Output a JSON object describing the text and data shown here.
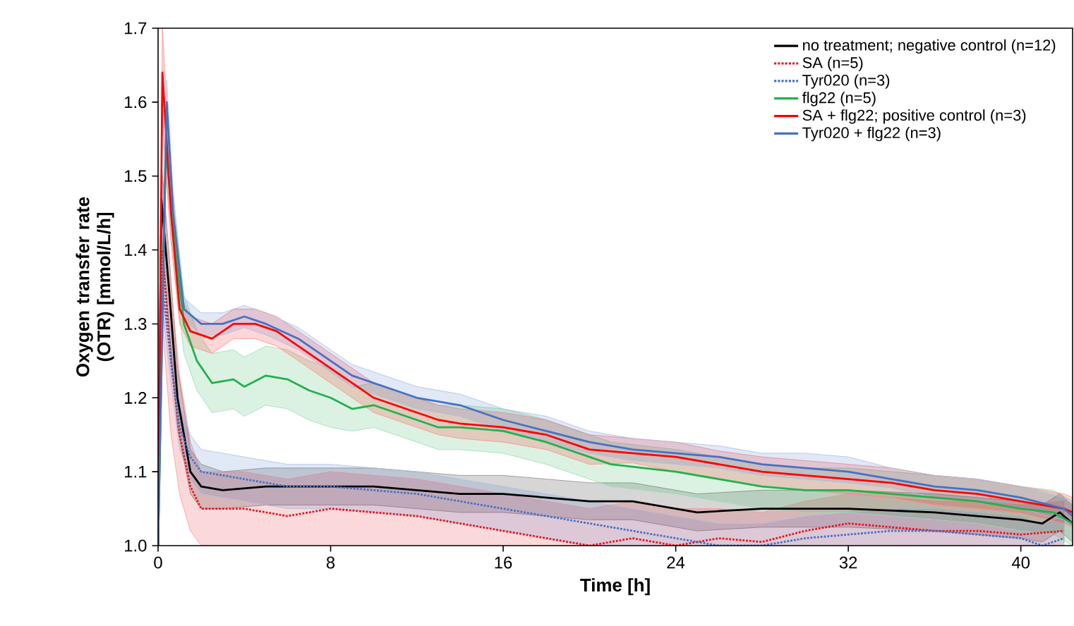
{
  "chart_data": {
    "type": "line",
    "xlabel": "Time [h]",
    "ylabel": "Oxygen transfer rate (OTR) [mmol/L/h]",
    "xlim": [
      0,
      42.4
    ],
    "ylim": [
      1.0,
      1.7
    ],
    "xticks": [
      0,
      8,
      16,
      24,
      32,
      40
    ],
    "yticks": [
      {
        "value": 1.0,
        "label": "1.0"
      },
      {
        "value": 1.1,
        "label": "1.1"
      },
      {
        "value": 1.2,
        "label": "1.2"
      },
      {
        "value": 1.3,
        "label": "1.3"
      },
      {
        "value": 1.4,
        "label": "1.4"
      },
      {
        "value": 1.5,
        "label": "1.5"
      },
      {
        "value": 1.6,
        "label": "1.6"
      },
      {
        "value": 1.7,
        "label": "1.7"
      }
    ],
    "legend": "top right",
    "grid": false,
    "series": [
      {
        "name": "no treatment; negative control (n=12)",
        "color": "#000000",
        "line_style": "solid",
        "x": [
          0,
          0.15,
          0.5,
          0.9,
          1.5,
          2,
          3,
          5,
          8,
          10,
          12,
          14,
          16,
          18,
          20,
          22,
          24,
          25,
          28,
          32,
          36,
          38,
          40,
          41,
          41.8,
          42.4
        ],
        "values": [
          1.0,
          1.47,
          1.35,
          1.2,
          1.1,
          1.08,
          1.075,
          1.08,
          1.08,
          1.08,
          1.075,
          1.07,
          1.07,
          1.065,
          1.06,
          1.06,
          1.05,
          1.045,
          1.05,
          1.05,
          1.045,
          1.04,
          1.035,
          1.03,
          1.045,
          1.03
        ],
        "lower": [
          1.0,
          1.42,
          1.3,
          1.16,
          1.07,
          1.05,
          1.05,
          1.055,
          1.055,
          1.055,
          1.05,
          1.045,
          1.045,
          1.04,
          1.035,
          1.035,
          1.025,
          1.02,
          1.025,
          1.025,
          1.02,
          1.015,
          1.01,
          1.005,
          1.02,
          1.005
        ],
        "upper": [
          1.0,
          1.52,
          1.4,
          1.24,
          1.13,
          1.11,
          1.1,
          1.105,
          1.105,
          1.105,
          1.1,
          1.095,
          1.095,
          1.09,
          1.085,
          1.085,
          1.075,
          1.07,
          1.075,
          1.075,
          1.07,
          1.065,
          1.06,
          1.055,
          1.07,
          1.055
        ]
      },
      {
        "name": "SA (n=5)",
        "color": "#e8141c",
        "line_style": "dotted",
        "x": [
          0,
          0.2,
          0.6,
          1,
          1.5,
          2,
          4,
          6,
          8,
          10,
          12,
          14,
          16,
          18,
          20,
          22,
          24,
          26,
          28,
          30,
          32,
          34,
          36,
          38,
          40,
          42
        ],
        "values": [
          1.0,
          1.4,
          1.25,
          1.15,
          1.08,
          1.05,
          1.05,
          1.04,
          1.05,
          1.045,
          1.04,
          1.03,
          1.02,
          1.01,
          1.0,
          1.01,
          1.0,
          1.01,
          1.005,
          1.02,
          1.03,
          1.025,
          1.02,
          1.02,
          1.015,
          1.02
        ],
        "lower": [
          1.0,
          1.3,
          1.15,
          1.07,
          1.02,
          1.0,
          1.0,
          1.0,
          1.0,
          1.0,
          1.0,
          1.0,
          1.0,
          1.0,
          1.0,
          1.0,
          1.0,
          1.0,
          1.0,
          1.0,
          1.0,
          1.0,
          1.0,
          1.0,
          1.0,
          1.0
        ],
        "upper": [
          1.0,
          1.5,
          1.35,
          1.23,
          1.14,
          1.1,
          1.1,
          1.09,
          1.1,
          1.095,
          1.09,
          1.08,
          1.07,
          1.06,
          1.05,
          1.06,
          1.05,
          1.05,
          1.045,
          1.06,
          1.07,
          1.065,
          1.06,
          1.06,
          1.055,
          1.06
        ]
      },
      {
        "name": "Tyr020 (n=3)",
        "color": "#4472c4",
        "line_style": "dotted",
        "x": [
          0,
          0.2,
          0.6,
          1,
          1.5,
          2,
          4,
          6,
          8,
          10,
          12,
          14,
          16,
          18,
          20,
          22,
          24,
          26,
          28,
          30,
          32,
          34,
          36,
          38,
          40,
          41,
          42
        ],
        "values": [
          1.0,
          1.35,
          1.25,
          1.16,
          1.12,
          1.1,
          1.09,
          1.08,
          1.08,
          1.075,
          1.07,
          1.06,
          1.05,
          1.04,
          1.03,
          1.02,
          1.01,
          1.0,
          1.0,
          1.01,
          1.015,
          1.02,
          1.02,
          1.015,
          1.01,
          1.0,
          1.01
        ],
        "lower": [
          1.0,
          1.32,
          1.22,
          1.13,
          1.09,
          1.07,
          1.06,
          1.05,
          1.05,
          1.045,
          1.04,
          1.03,
          1.02,
          1.01,
          1.0,
          1.0,
          1.0,
          1.0,
          1.0,
          1.0,
          1.0,
          1.0,
          1.0,
          1.0,
          1.0,
          1.0,
          1.0
        ],
        "upper": [
          1.0,
          1.38,
          1.28,
          1.19,
          1.15,
          1.13,
          1.12,
          1.11,
          1.11,
          1.105,
          1.1,
          1.09,
          1.08,
          1.07,
          1.06,
          1.05,
          1.04,
          1.03,
          1.03,
          1.04,
          1.045,
          1.05,
          1.05,
          1.045,
          1.04,
          1.03,
          1.04
        ]
      },
      {
        "name": "flg22 (n=5)",
        "color": "#22b14c",
        "line_style": "solid",
        "x": [
          0,
          0.35,
          0.8,
          1.2,
          1.8,
          2.5,
          3.5,
          4,
          5,
          6,
          7,
          8,
          9,
          10,
          11,
          12,
          13,
          14,
          16,
          18,
          20,
          21,
          24,
          26,
          28,
          30,
          32,
          34,
          36,
          38,
          40,
          41.5,
          42.4
        ],
        "values": [
          1.0,
          1.54,
          1.4,
          1.3,
          1.25,
          1.22,
          1.225,
          1.215,
          1.23,
          1.225,
          1.21,
          1.2,
          1.185,
          1.19,
          1.18,
          1.17,
          1.16,
          1.16,
          1.155,
          1.14,
          1.12,
          1.11,
          1.1,
          1.09,
          1.08,
          1.075,
          1.075,
          1.07,
          1.065,
          1.06,
          1.05,
          1.045,
          1.03
        ],
        "lower": [
          1.0,
          1.5,
          1.36,
          1.26,
          1.21,
          1.18,
          1.185,
          1.175,
          1.19,
          1.185,
          1.17,
          1.16,
          1.155,
          1.16,
          1.15,
          1.14,
          1.13,
          1.13,
          1.125,
          1.11,
          1.09,
          1.08,
          1.07,
          1.06,
          1.05,
          1.045,
          1.045,
          1.04,
          1.035,
          1.03,
          1.02,
          1.015,
          1.0
        ],
        "upper": [
          1.0,
          1.58,
          1.44,
          1.34,
          1.29,
          1.26,
          1.265,
          1.255,
          1.27,
          1.265,
          1.25,
          1.24,
          1.215,
          1.22,
          1.21,
          1.2,
          1.19,
          1.19,
          1.185,
          1.17,
          1.15,
          1.14,
          1.13,
          1.12,
          1.11,
          1.105,
          1.105,
          1.1,
          1.095,
          1.09,
          1.08,
          1.075,
          1.06
        ]
      },
      {
        "name": "SA + flg22; positive control (n=3)",
        "color": "#ff0000",
        "line_style": "solid",
        "x": [
          0,
          0.2,
          0.6,
          1,
          1.5,
          2.5,
          3.5,
          4.5,
          5.5,
          6.5,
          8,
          9,
          10,
          11,
          12,
          13,
          14,
          16,
          18,
          20,
          22,
          24,
          26,
          28,
          30,
          32,
          34,
          36,
          38,
          40,
          42,
          42.4
        ],
        "values": [
          1.0,
          1.64,
          1.45,
          1.32,
          1.29,
          1.28,
          1.3,
          1.3,
          1.29,
          1.27,
          1.24,
          1.22,
          1.2,
          1.19,
          1.18,
          1.17,
          1.165,
          1.16,
          1.15,
          1.13,
          1.125,
          1.12,
          1.11,
          1.1,
          1.095,
          1.09,
          1.085,
          1.075,
          1.07,
          1.06,
          1.05,
          1.045
        ],
        "lower": [
          1.0,
          1.58,
          1.41,
          1.3,
          1.27,
          1.26,
          1.28,
          1.28,
          1.27,
          1.25,
          1.22,
          1.2,
          1.18,
          1.17,
          1.16,
          1.15,
          1.145,
          1.14,
          1.13,
          1.11,
          1.112,
          1.1,
          1.09,
          1.08,
          1.075,
          1.07,
          1.065,
          1.055,
          1.05,
          1.044,
          1.03,
          1.025
        ],
        "upper": [
          1.0,
          1.7,
          1.49,
          1.34,
          1.31,
          1.3,
          1.32,
          1.32,
          1.31,
          1.29,
          1.26,
          1.24,
          1.22,
          1.21,
          1.2,
          1.19,
          1.185,
          1.18,
          1.17,
          1.15,
          1.145,
          1.14,
          1.128,
          1.12,
          1.115,
          1.11,
          1.105,
          1.095,
          1.09,
          1.08,
          1.07,
          1.065
        ]
      },
      {
        "name": "Tyr020 + flg22 (n=3)",
        "color": "#4472c4",
        "line_style": "solid",
        "x": [
          0,
          0.4,
          0.7,
          1.2,
          2,
          3,
          4,
          5,
          6.5,
          8,
          9,
          10,
          11,
          12,
          14,
          16,
          18,
          20,
          22,
          24,
          26,
          28,
          30,
          32,
          34,
          36,
          38,
          40,
          42,
          42.4
        ],
        "values": [
          1.0,
          1.6,
          1.45,
          1.32,
          1.3,
          1.3,
          1.31,
          1.3,
          1.28,
          1.25,
          1.23,
          1.22,
          1.21,
          1.2,
          1.19,
          1.17,
          1.155,
          1.14,
          1.13,
          1.125,
          1.12,
          1.11,
          1.105,
          1.1,
          1.09,
          1.08,
          1.075,
          1.065,
          1.05,
          1.04
        ],
        "lower": [
          1.0,
          1.57,
          1.42,
          1.305,
          1.285,
          1.285,
          1.295,
          1.285,
          1.265,
          1.235,
          1.215,
          1.205,
          1.195,
          1.185,
          1.175,
          1.155,
          1.14,
          1.125,
          1.115,
          1.11,
          1.105,
          1.095,
          1.09,
          1.085,
          1.078,
          1.065,
          1.06,
          1.05,
          1.035,
          1.025
        ],
        "upper": [
          1.0,
          1.63,
          1.48,
          1.335,
          1.315,
          1.315,
          1.325,
          1.315,
          1.295,
          1.265,
          1.245,
          1.235,
          1.225,
          1.215,
          1.205,
          1.185,
          1.175,
          1.155,
          1.145,
          1.14,
          1.135,
          1.125,
          1.125,
          1.12,
          1.105,
          1.095,
          1.09,
          1.08,
          1.065,
          1.055
        ]
      }
    ]
  }
}
